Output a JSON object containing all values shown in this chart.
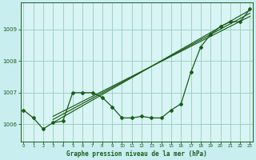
{
  "title": "Graphe pression niveau de la mer (hPa)",
  "bg_color": "#c8eef0",
  "plot_bg_color": "#d8f4f4",
  "line_color": "#1a5c1a",
  "grid_color": "#99ccbb",
  "x_ticks": [
    0,
    1,
    2,
    3,
    4,
    5,
    6,
    7,
    8,
    9,
    10,
    11,
    12,
    13,
    14,
    15,
    16,
    17,
    18,
    19,
    20,
    21,
    22,
    23
  ],
  "y_ticks": [
    1006,
    1007,
    1008,
    1009
  ],
  "ylim": [
    1005.45,
    1009.85
  ],
  "xlim": [
    -0.3,
    23.3
  ],
  "pressure": [
    1006.45,
    1006.2,
    1005.85,
    1006.05,
    1006.1,
    1007.0,
    1007.0,
    1007.0,
    1006.85,
    1006.55,
    1006.2,
    1006.2,
    1006.25,
    1006.2,
    1006.2,
    1006.45,
    1006.65,
    1007.65,
    1008.45,
    1008.85,
    1009.1,
    1009.25,
    1009.25,
    1009.65
  ],
  "trend_lines": [
    {
      "x0": 3,
      "y0": 1006.05,
      "x1": 23,
      "y1": 1009.62
    },
    {
      "x0": 3,
      "y0": 1006.15,
      "x1": 23,
      "y1": 1009.52
    },
    {
      "x0": 3,
      "y0": 1006.25,
      "x1": 23,
      "y1": 1009.42
    }
  ]
}
